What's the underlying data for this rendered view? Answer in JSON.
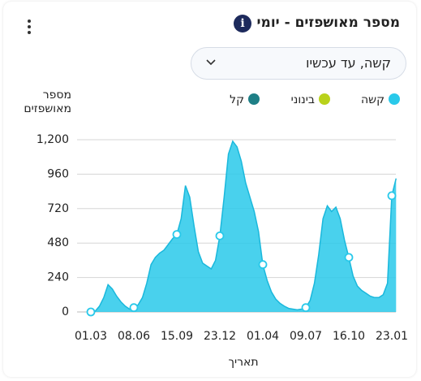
{
  "header": {
    "title": "מספר מאושפזים - יומי",
    "info_icon": "i",
    "dropdown": "קשה, עד עכשיו"
  },
  "chart_data": {
    "type": "area",
    "ylabel_lines": [
      "מספר",
      "מאושפזים"
    ],
    "xlabel": "תאריך",
    "legend": [
      {
        "name": "קשה",
        "color": "#29c9ea"
      },
      {
        "name": "בינוני",
        "color": "#b9d21b"
      },
      {
        "name": "קל",
        "color": "#1e7f86"
      }
    ],
    "categories": [
      "01.03",
      null,
      null,
      null,
      null,
      null,
      null,
      null,
      null,
      null,
      "08.06",
      null,
      null,
      null,
      null,
      null,
      null,
      null,
      null,
      null,
      "15.09",
      null,
      null,
      null,
      null,
      null,
      null,
      null,
      null,
      null,
      "23.12",
      null,
      null,
      null,
      null,
      null,
      null,
      null,
      null,
      null,
      "01.04",
      null,
      null,
      null,
      null,
      null,
      null,
      null,
      null,
      null,
      "09.07",
      null,
      null,
      null,
      null,
      null,
      null,
      null,
      null,
      null,
      "16.10",
      null,
      null,
      null,
      null,
      null,
      null,
      null,
      null,
      null,
      "23.01",
      null
    ],
    "series": [
      {
        "name": "קשה",
        "color": "#29c9ea",
        "values": [
          0,
          5,
          40,
          100,
          190,
          160,
          110,
          70,
          40,
          20,
          30,
          50,
          100,
          200,
          330,
          380,
          410,
          430,
          470,
          510,
          540,
          650,
          880,
          800,
          600,
          420,
          340,
          320,
          300,
          360,
          530,
          800,
          1100,
          1190,
          1150,
          1050,
          900,
          800,
          700,
          560,
          330,
          220,
          140,
          90,
          60,
          40,
          25,
          20,
          15,
          20,
          30,
          80,
          200,
          400,
          650,
          740,
          700,
          730,
          650,
          500,
          380,
          250,
          180,
          150,
          130,
          110,
          100,
          100,
          120,
          200,
          810,
          930
        ]
      }
    ],
    "markers": [
      0,
      10,
      20,
      30,
      40,
      50,
      60,
      70
    ],
    "ylim": [
      0,
      1200
    ],
    "yticks": [
      0,
      240,
      480,
      720,
      960,
      {
        "value": 1200,
        "label": "1,200"
      }
    ],
    "grid": true
  }
}
